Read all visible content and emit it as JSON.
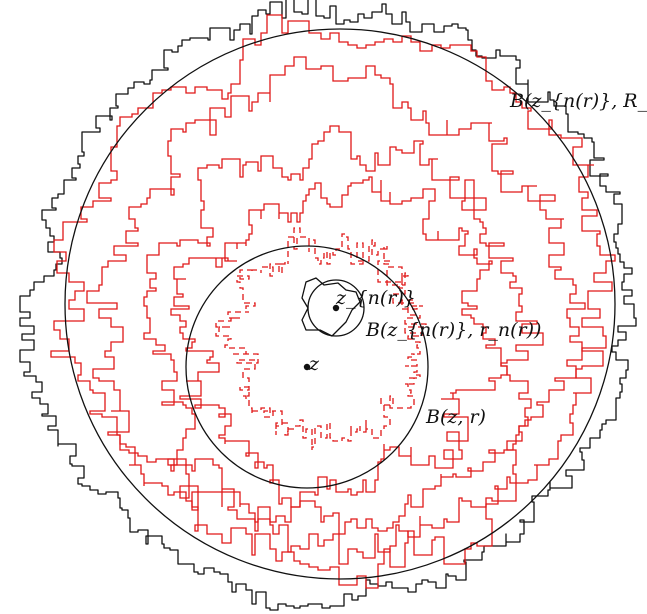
{
  "labels": {
    "outer_ball": "B(z_{n(r)}, R_n(r))",
    "center_label": "z_{n(r)}",
    "small_ball": "B(z_{n(r)}, r_n(r))",
    "point_label": "z",
    "mid_ball": "B(z, r)"
  },
  "colors": {
    "curve": "#e01818",
    "ink": "#111111"
  }
}
